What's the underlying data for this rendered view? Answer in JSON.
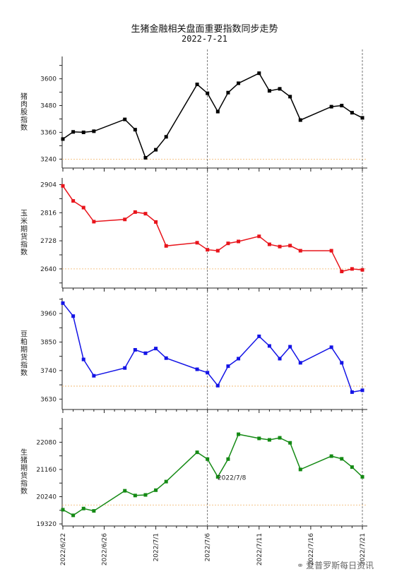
{
  "title": "生猪金融相关盘面重要指数同步走势",
  "subtitle": "2022-7-21",
  "watermark": "爱普罗斯每日资讯",
  "chart_data": {
    "type": "line",
    "x": [
      "2022/6/22",
      "2022/6/23",
      "2022/6/24",
      "2022/6/25",
      "2022/6/26",
      "2022/6/27",
      "2022/6/28",
      "2022/6/29",
      "2022/6/30",
      "2022/7/1",
      "2022/7/2",
      "2022/7/3",
      "2022/7/4",
      "2022/7/5",
      "2022/7/6",
      "2022/7/7",
      "2022/7/8",
      "2022/7/9",
      "2022/7/10",
      "2022/7/11",
      "2022/7/12",
      "2022/7/13",
      "2022/7/14",
      "2022/7/15",
      "2022/7/16",
      "2022/7/17",
      "2022/7/18",
      "2022/7/19",
      "2022/7/20",
      "2022/7/21"
    ],
    "xticks": [
      "2022/6/22",
      "2022/6/26",
      "2022/7/1",
      "2022/7/6",
      "2022/7/11",
      "2022/7/16",
      "2022/7/21"
    ],
    "vlines": [
      "2022/7/6",
      "2022/7/21"
    ],
    "panels": [
      {
        "ylabel": "猪肉股指数",
        "color": "#000000",
        "yticks": [
          3240,
          3360,
          3480,
          3600
        ],
        "ylim": [
          3200,
          3700
        ],
        "ref": 3240,
        "points": [
          [
            "2022/6/22",
            3330
          ],
          [
            "2022/6/23",
            3362
          ],
          [
            "2022/6/24",
            3360
          ],
          [
            "2022/6/25",
            3365
          ],
          [
            "2022/6/28",
            3418
          ],
          [
            "2022/6/29",
            3372
          ],
          [
            "2022/6/30",
            3246
          ],
          [
            "2022/7/1",
            3282
          ],
          [
            "2022/7/2",
            3340
          ],
          [
            "2022/7/5",
            3575
          ],
          [
            "2022/7/6",
            3535
          ],
          [
            "2022/7/7",
            3453
          ],
          [
            "2022/7/8",
            3538
          ],
          [
            "2022/7/9",
            3580
          ],
          [
            "2022/7/11",
            3625
          ],
          [
            "2022/7/12",
            3546
          ],
          [
            "2022/7/13",
            3555
          ],
          [
            "2022/7/14",
            3520
          ],
          [
            "2022/7/15",
            3415
          ],
          [
            "2022/7/18",
            3475
          ],
          [
            "2022/7/19",
            3480
          ],
          [
            "2022/7/20",
            3448
          ],
          [
            "2022/7/21",
            3425
          ]
        ]
      },
      {
        "ylabel": "玉米期货指数",
        "color": "#e8141b",
        "yticks": [
          2640,
          2728,
          2816,
          2904
        ],
        "ylim": [
          2580,
          2925
        ],
        "ref": 2640,
        "points": [
          [
            "2022/6/22",
            2900
          ],
          [
            "2022/6/23",
            2853
          ],
          [
            "2022/6/24",
            2832
          ],
          [
            "2022/6/25",
            2788
          ],
          [
            "2022/6/28",
            2795
          ],
          [
            "2022/6/29",
            2818
          ],
          [
            "2022/6/30",
            2813
          ],
          [
            "2022/7/1",
            2787
          ],
          [
            "2022/7/2",
            2712
          ],
          [
            "2022/7/5",
            2722
          ],
          [
            "2022/7/6",
            2700
          ],
          [
            "2022/7/7",
            2697
          ],
          [
            "2022/7/8",
            2720
          ],
          [
            "2022/7/9",
            2726
          ],
          [
            "2022/7/11",
            2742
          ],
          [
            "2022/7/12",
            2717
          ],
          [
            "2022/7/13",
            2710
          ],
          [
            "2022/7/14",
            2713
          ],
          [
            "2022/7/15",
            2697
          ],
          [
            "2022/7/18",
            2697
          ],
          [
            "2022/7/19",
            2632
          ],
          [
            "2022/7/20",
            2640
          ],
          [
            "2022/7/21",
            2637
          ]
        ]
      },
      {
        "ylabel": "豆粕期货指数",
        "color": "#1414e6",
        "yticks": [
          3630,
          3740,
          3850,
          3960
        ],
        "ylim": [
          3590,
          4020
        ],
        "ref": 3680,
        "points": [
          [
            "2022/6/22",
            4000
          ],
          [
            "2022/6/23",
            3950
          ],
          [
            "2022/6/24",
            3783
          ],
          [
            "2022/6/25",
            3720
          ],
          [
            "2022/6/28",
            3750
          ],
          [
            "2022/6/29",
            3820
          ],
          [
            "2022/6/30",
            3807
          ],
          [
            "2022/7/1",
            3825
          ],
          [
            "2022/7/2",
            3788
          ],
          [
            "2022/7/5",
            3745
          ],
          [
            "2022/7/6",
            3732
          ],
          [
            "2022/7/7",
            3682
          ],
          [
            "2022/7/8",
            3757
          ],
          [
            "2022/7/9",
            3786
          ],
          [
            "2022/7/11",
            3872
          ],
          [
            "2022/7/12",
            3835
          ],
          [
            "2022/7/13",
            3786
          ],
          [
            "2022/7/14",
            3832
          ],
          [
            "2022/7/15",
            3770
          ],
          [
            "2022/7/18",
            3830
          ],
          [
            "2022/7/19",
            3770
          ],
          [
            "2022/7/20",
            3657
          ],
          [
            "2022/7/21",
            3664
          ]
        ]
      },
      {
        "ylabel": "生猪期货指数",
        "color": "#148a14",
        "yticks": [
          19320,
          20240,
          21160,
          22080
        ],
        "ylim": [
          19250,
          22900
        ],
        "ref": 19960,
        "annotation": {
          "x": "2022/7/8",
          "text": "2022/7/8"
        },
        "points": [
          [
            "2022/6/22",
            19800
          ],
          [
            "2022/6/23",
            19610
          ],
          [
            "2022/6/24",
            19840
          ],
          [
            "2022/6/25",
            19760
          ],
          [
            "2022/6/28",
            20440
          ],
          [
            "2022/6/29",
            20280
          ],
          [
            "2022/6/30",
            20300
          ],
          [
            "2022/7/1",
            20460
          ],
          [
            "2022/7/2",
            20750
          ],
          [
            "2022/7/5",
            21740
          ],
          [
            "2022/7/6",
            21510
          ],
          [
            "2022/7/7",
            20910
          ],
          [
            "2022/7/8",
            21510
          ],
          [
            "2022/7/9",
            22350
          ],
          [
            "2022/7/11",
            22210
          ],
          [
            "2022/7/12",
            22160
          ],
          [
            "2022/7/13",
            22230
          ],
          [
            "2022/7/14",
            22060
          ],
          [
            "2022/7/15",
            21160
          ],
          [
            "2022/7/18",
            21610
          ],
          [
            "2022/7/19",
            21520
          ],
          [
            "2022/7/20",
            21240
          ],
          [
            "2022/7/21",
            20910
          ]
        ]
      }
    ]
  }
}
